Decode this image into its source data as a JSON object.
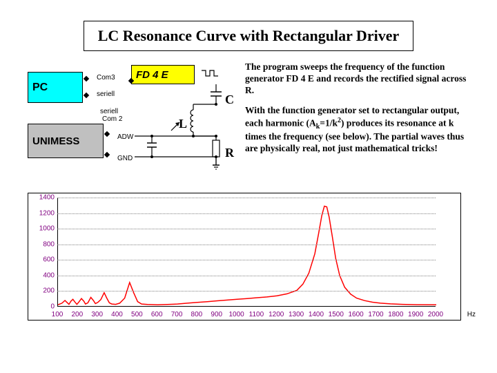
{
  "title": "LC Resonance Curve with Rectangular Driver",
  "diagram": {
    "pc": "PC",
    "fd": "FD 4 E",
    "unimess": "UNIMESS",
    "labels": {
      "com3": "Com3",
      "seriell1": "seriell",
      "seriell2": "seriell",
      "com2": "Com 2",
      "adw": "ADW",
      "gnd": "GND",
      "c": "C",
      "l": "L",
      "r": "R"
    },
    "colors": {
      "pc_bg": "#00ffff",
      "fd_bg": "#ffff00",
      "unimess_bg": "#c0c0c0",
      "wire": "#000000"
    }
  },
  "text": {
    "p1": "The program sweeps the frequency of the function generator FD 4 E and records the rectified signal across R.",
    "p2a": "With the function generator set to rectangular output, each harmonic (A",
    "p2_sub": "k",
    "p2b": "=1/k",
    "p2_sup": "2",
    "p2c": ") produces its resonance at k times the frequency (see below). The partial waves thus are physically real, not just mathematical tricks!"
  },
  "chart": {
    "type": "line",
    "ylim": [
      0,
      1400
    ],
    "yticks": [
      0,
      200,
      400,
      600,
      800,
      1000,
      1200,
      1400
    ],
    "xlim": [
      100,
      2000
    ],
    "xticks": [
      100,
      200,
      300,
      400,
      500,
      600,
      700,
      800,
      900,
      1000,
      1100,
      1200,
      1300,
      1400,
      1500,
      1600,
      1700,
      1800,
      1900,
      2000
    ],
    "x_unit": "Hz",
    "line_color": "#ff0000",
    "line_width": 1.5,
    "grid_color": "#808080",
    "axis_label_color": "#800080",
    "background_color": "#ffffff",
    "tick_fontsize": 10,
    "curve": [
      [
        100,
        25
      ],
      [
        120,
        45
      ],
      [
        135,
        80
      ],
      [
        145,
        55
      ],
      [
        155,
        30
      ],
      [
        165,
        70
      ],
      [
        175,
        95
      ],
      [
        185,
        60
      ],
      [
        195,
        30
      ],
      [
        205,
        60
      ],
      [
        218,
        105
      ],
      [
        230,
        70
      ],
      [
        238,
        35
      ],
      [
        250,
        50
      ],
      [
        265,
        120
      ],
      [
        278,
        80
      ],
      [
        288,
        40
      ],
      [
        300,
        55
      ],
      [
        315,
        90
      ],
      [
        332,
        180
      ],
      [
        345,
        110
      ],
      [
        358,
        50
      ],
      [
        370,
        35
      ],
      [
        390,
        30
      ],
      [
        410,
        45
      ],
      [
        435,
        110
      ],
      [
        460,
        310
      ],
      [
        480,
        180
      ],
      [
        500,
        65
      ],
      [
        520,
        35
      ],
      [
        550,
        28
      ],
      [
        600,
        25
      ],
      [
        650,
        28
      ],
      [
        700,
        35
      ],
      [
        750,
        45
      ],
      [
        800,
        55
      ],
      [
        850,
        65
      ],
      [
        900,
        75
      ],
      [
        950,
        85
      ],
      [
        1000,
        95
      ],
      [
        1050,
        105
      ],
      [
        1100,
        115
      ],
      [
        1150,
        125
      ],
      [
        1200,
        140
      ],
      [
        1250,
        165
      ],
      [
        1300,
        210
      ],
      [
        1330,
        290
      ],
      [
        1360,
        430
      ],
      [
        1390,
        680
      ],
      [
        1410,
        950
      ],
      [
        1425,
        1170
      ],
      [
        1438,
        1290
      ],
      [
        1450,
        1280
      ],
      [
        1462,
        1150
      ],
      [
        1478,
        900
      ],
      [
        1495,
        620
      ],
      [
        1515,
        400
      ],
      [
        1540,
        250
      ],
      [
        1570,
        160
      ],
      [
        1600,
        110
      ],
      [
        1640,
        78
      ],
      [
        1680,
        58
      ],
      [
        1720,
        45
      ],
      [
        1770,
        36
      ],
      [
        1830,
        30
      ],
      [
        1900,
        26
      ],
      [
        2000,
        24
      ]
    ]
  }
}
